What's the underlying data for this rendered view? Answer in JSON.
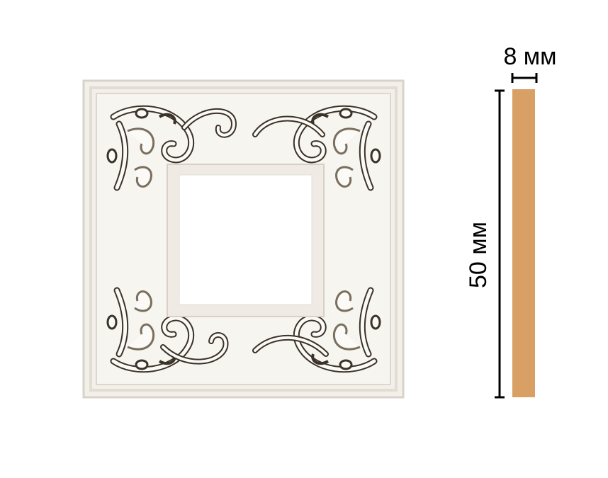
{
  "dimensions": {
    "thickness_label": "8 мм",
    "height_label": "50 мм"
  },
  "colors": {
    "background": "#ffffff",
    "frame_base": "#f3f0ea",
    "frame_edge": "#d8d3ca",
    "ornament_fill": "#fbfaf7",
    "ornament_shadow": "#7a6e5e",
    "ornament_dark": "#3b3228",
    "profile_fill": "#d9a066",
    "dimension_line": "#000000"
  },
  "icons": {
    "frame": "ornamental-square-frame-icon",
    "profile": "side-profile-bar-icon"
  }
}
